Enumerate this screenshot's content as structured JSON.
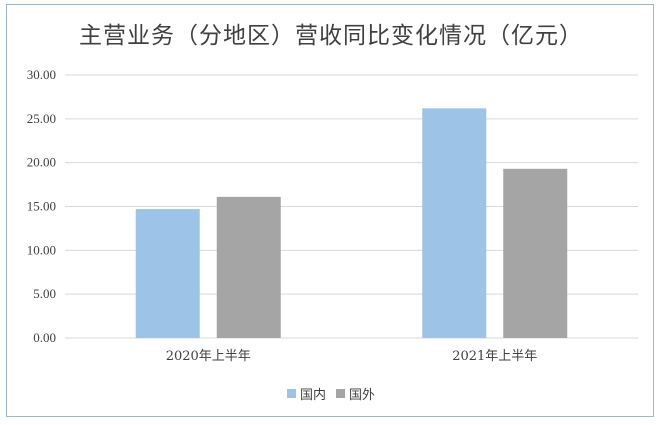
{
  "chart_data": {
    "type": "bar",
    "title": "主营业务（分地区）营收同比变化情况（亿元）",
    "categories": [
      "2020年上半年",
      "2021年上半年"
    ],
    "series": [
      {
        "name": "国内",
        "color": "#9dc3e6",
        "values": [
          14.7,
          26.2
        ]
      },
      {
        "name": "国外",
        "color": "#a5a5a5",
        "values": [
          16.1,
          19.3
        ]
      }
    ],
    "ylim": [
      0,
      30
    ],
    "yticks": [
      "0.00",
      "5.00",
      "10.00",
      "15.00",
      "20.00",
      "25.00",
      "30.00"
    ],
    "grid": true,
    "legend_position": "bottom"
  }
}
